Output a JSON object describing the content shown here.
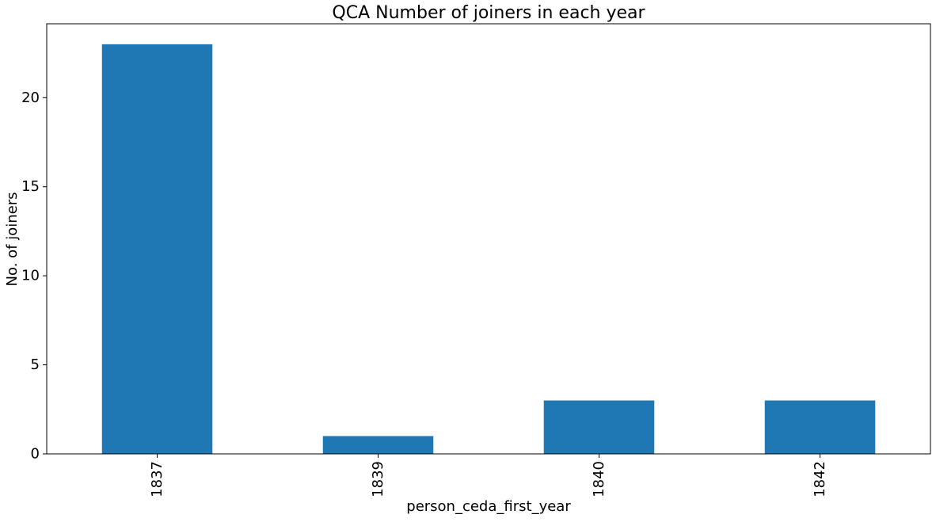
{
  "chart_data": {
    "type": "bar",
    "title": "QCA Number of joiners in each year",
    "xlabel": "person_ceda_first_year",
    "ylabel": "No. of joiners",
    "categories": [
      "1837",
      "1839",
      "1840",
      "1842"
    ],
    "values": [
      23,
      1,
      3,
      3
    ],
    "ylim": [
      0,
      24.15
    ],
    "yticks": [
      0,
      5,
      10,
      15,
      20
    ],
    "bar_color": "#1f77b4",
    "grid": false,
    "legend": "none"
  }
}
